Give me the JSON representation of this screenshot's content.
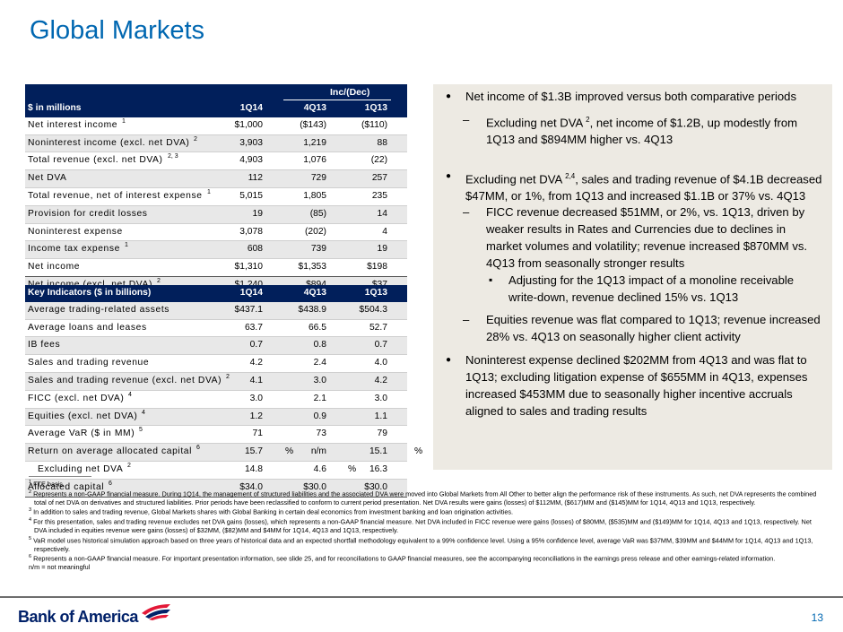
{
  "title": "Global Markets",
  "table1": {
    "group_header": "Inc/(Dec)",
    "header": {
      "label": "$ in millions",
      "c1": "1Q14",
      "c2": "4Q13",
      "c3": "1Q13"
    },
    "rows": [
      {
        "label": "Net interest income",
        "sup": "1",
        "v1": "$1,000",
        "v2": "($143)",
        "v3": "($110)",
        "shade": false
      },
      {
        "label": "Noninterest income (excl. net DVA)",
        "sup": "2",
        "v1": "3,903",
        "v2": "1,219",
        "v3": "88",
        "shade": true
      },
      {
        "label": "Total revenue (excl. net DVA)",
        "sup": "2, 3",
        "v1": "4,903",
        "v2": "1,076",
        "v3": "(22)",
        "shade": false
      },
      {
        "label": "Net DVA",
        "sup": "",
        "v1": "112",
        "v2": "729",
        "v3": "257",
        "shade": true
      },
      {
        "label": "Total revenue, net of interest expense",
        "sup": "1",
        "v1": "5,015",
        "v2": "1,805",
        "v3": "235",
        "shade": false
      },
      {
        "label": "Provision for credit losses",
        "sup": "",
        "v1": "19",
        "v2": "(85)",
        "v3": "14",
        "shade": true
      },
      {
        "label": "Noninterest expense",
        "sup": "",
        "v1": "3,078",
        "v2": "(202)",
        "v3": "4",
        "shade": false
      },
      {
        "label": "Income tax expense",
        "sup": "1",
        "v1": "608",
        "v2": "739",
        "v3": "19",
        "shade": true
      },
      {
        "label": "Net income",
        "sup": "",
        "v1": "$1,310",
        "v2": "$1,353",
        "v3": "$198",
        "shade": false
      },
      {
        "label": "Net income (excl. net DVA)",
        "sup": "2",
        "v1": "$1,240",
        "v2": "$894",
        "v3": "$37",
        "shade": true
      }
    ]
  },
  "table2": {
    "header": {
      "label": "Key Indicators ($ in billions)",
      "c1": "1Q14",
      "c2": "4Q13",
      "c3": "1Q13"
    },
    "rows": [
      {
        "label": "Average trading-related assets",
        "sup": "",
        "v1": "$437.1",
        "v2": "$438.9",
        "v3": "$504.3",
        "shade": true
      },
      {
        "label": "Average loans and leases",
        "sup": "",
        "v1": "63.7",
        "v2": "66.5",
        "v3": "52.7",
        "shade": false
      },
      {
        "label": "IB fees",
        "sup": "",
        "v1": "0.7",
        "v2": "0.8",
        "v3": "0.7",
        "shade": true
      },
      {
        "label": "Sales and trading revenue",
        "sup": "",
        "v1": "4.2",
        "v2": "2.4",
        "v3": "4.0",
        "shade": false
      },
      {
        "label": "Sales and trading revenue (excl. net DVA)",
        "sup": "2",
        "v1": "4.1",
        "v2": "3.0",
        "v3": "4.2",
        "shade": true
      },
      {
        "label": "FICC (excl. net DVA)",
        "sup": "4",
        "v1": "3.0",
        "v2": "2.1",
        "v3": "3.0",
        "shade": false
      },
      {
        "label": "Equities (excl. net DVA)",
        "sup": "4",
        "v1": "1.2",
        "v2": "0.9",
        "v3": "1.1",
        "shade": true
      },
      {
        "label": "Average VaR ($ in MM)",
        "sup": "5",
        "v1": "71",
        "v2": "73",
        "v3": "79",
        "shade": false
      },
      {
        "label": "Return on average allocated capital",
        "sup": "6",
        "v1": "15.7",
        "v2": "n/m",
        "v3": "15.1",
        "shade": true
      },
      {
        "label": "Excluding net DVA",
        "sup": "2",
        "v1": "14.8",
        "v2": "4.6",
        "v3": "16.3",
        "shade": false
      },
      {
        "label": "Allocated capital",
        "sup": "6",
        "v1": "$34.0",
        "v2": "$30.0",
        "v3": "$30.0",
        "shade": true
      }
    ],
    "pct": "%"
  },
  "bullets": [
    {
      "level": 1,
      "text": "Net income of $1.3B improved versus both comparative periods"
    },
    {
      "level": 2,
      "text_a": "Excluding net DVA ",
      "sup": "2",
      "text_b": ", net income of $1.2B, up modestly from 1Q13 and $894MM higher vs. 4Q13"
    },
    {
      "level": 1,
      "text_a": "Excluding net DVA ",
      "sup": "2,4",
      "text_b": ", sales and trading revenue of $4.1B decreased $47MM, or 1%, from 1Q13 and increased $1.1B or 37% vs. 4Q13"
    },
    {
      "level": 2,
      "text": "FICC revenue decreased $51MM, or 2%, vs. 1Q13, driven by weaker results in Rates and Currencies due to declines in market volumes and volatility; revenue increased $870MM vs. 4Q13 from seasonally stronger results"
    },
    {
      "level": 3,
      "text": "Adjusting for the 1Q13 impact of a monoline receivable write-down, revenue declined 15% vs. 1Q13"
    },
    {
      "level": 2,
      "text": "Equities revenue was flat compared to 1Q13; revenue increased 28% vs. 4Q13 on seasonally higher client activity"
    },
    {
      "level": 1,
      "text": "Noninterest expense declined $202MM from 4Q13 and was flat to 1Q13; excluding litigation expense of $655MM in 4Q13, expenses increased $453MM due to seasonally higher incentive accruals aligned to sales and trading results"
    }
  ],
  "footnotes": [
    {
      "num": "1",
      "text": " FTE basis."
    },
    {
      "num": "2",
      "text": " Represents a non-GAAP financial measure. During 1Q14, the management of structured liabilities and the associated DVA were moved into Global Markets from All Other to better align the performance risk of these instruments. As such, net DVA represents the combined total of net DVA on derivatives and structured liabilities. Prior periods have been reclassified to conform to current period presentation. Net DVA results were gains (losses) of $112MM, ($617)MM and ($145)MM for 1Q14, 4Q13 and 1Q13, respectively."
    },
    {
      "num": "3",
      "text": " In addition to sales and trading revenue, Global Markets shares with Global Banking in certain deal economics from investment banking and loan origination activities."
    },
    {
      "num": "4",
      "text": " For this presentation, sales and trading revenue excludes net DVA gains (losses), which represents a non-GAAP financial measure. Net DVA included in FICC revenue were gains (losses) of $80MM, ($535)MM and ($149)MM for 1Q14, 4Q13 and 1Q13, respectively. Net DVA included in equities revenue were gains (losses) of $32MM, ($82)MM and $4MM for 1Q14, 4Q13 and 1Q13, respectively."
    },
    {
      "num": "5",
      "text": " VaR model uses historical simulation approach based on three years of historical data and an expected shortfall methodology equivalent to a 99% confidence level. Using a 95% confidence level, average VaR was $37MM, $39MM and $44MM for 1Q14, 4Q13 and 1Q13, respectively."
    },
    {
      "num": "6",
      "text": " Represents a non-GAAP financial measure. For important presentation information, see slide 25, and for reconciliations to GAAP financial measures, see the accompanying reconciliations in the earnings press release and other earnings-related information."
    },
    {
      "num": "",
      "text": "n/m = not meaningful"
    }
  ],
  "footer": {
    "logo": "Bank of America",
    "page": "13"
  },
  "colors": {
    "accent": "#0067B1",
    "header_navy": "#011F5B",
    "panel": "#EDEAE3",
    "logo_red": "#E31837"
  }
}
